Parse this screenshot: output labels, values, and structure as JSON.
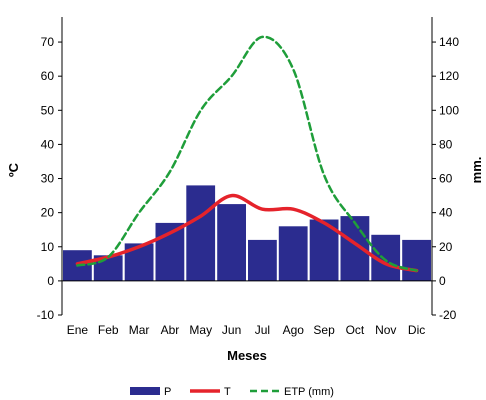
{
  "chart_data": {
    "type": "bar",
    "categories": [
      "Ene",
      "Feb",
      "Mar",
      "Abr",
      "May",
      "Jun",
      "Jul",
      "Ago",
      "Sep",
      "Oct",
      "Nov",
      "Dic"
    ],
    "series": [
      {
        "name": "P",
        "type": "bar",
        "axis": "right",
        "color": "#2b2c8f",
        "values": [
          18,
          15,
          22,
          34,
          56,
          45,
          24,
          32,
          36,
          38,
          27,
          24
        ]
      },
      {
        "name": "T",
        "type": "line",
        "axis": "left",
        "color": "#e5232b",
        "style": "solid",
        "values": [
          5,
          7,
          10,
          14,
          19,
          25,
          21,
          21,
          17,
          11,
          5,
          3
        ]
      },
      {
        "name": "ETP (mm)",
        "type": "line",
        "axis": "right",
        "color": "#1f9e3a",
        "style": "dashed",
        "values": [
          9,
          14,
          40,
          64,
          100,
          120,
          143,
          124,
          62,
          34,
          12,
          6
        ]
      }
    ],
    "xlabel": "Meses",
    "ylabel": "ºC",
    "y2label": "mm.",
    "ylim": [
      -10,
      75
    ],
    "yticks": [
      -10,
      0,
      10,
      20,
      30,
      40,
      50,
      60,
      70
    ],
    "y2lim": [
      -20,
      150
    ],
    "y2ticks": [
      -20,
      0,
      20,
      40,
      60,
      80,
      100,
      120,
      140
    ],
    "grid": false,
    "legend_position": "bottom"
  }
}
